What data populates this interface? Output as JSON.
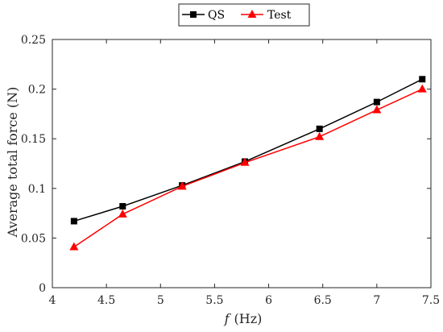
{
  "chart_data": {
    "type": "line",
    "xlabel_italic": "f",
    "xlabel_unit": "(Hz)",
    "ylabel": "Average total force (N)",
    "xlim": [
      4,
      7.5
    ],
    "ylim": [
      0,
      0.25
    ],
    "xticks": [
      4,
      4.5,
      5,
      5.5,
      6,
      6.5,
      7,
      7.5
    ],
    "yticks": [
      0,
      0.05,
      0.1,
      0.15,
      0.2,
      0.25
    ],
    "xtick_labels": [
      "4",
      "4.5",
      "5",
      "5.5",
      "6",
      "6.5",
      "7",
      "7.5"
    ],
    "ytick_labels": [
      "0",
      "0.05",
      "0.1",
      "0.15",
      "0.2",
      "0.25"
    ],
    "grid": false,
    "legend_position": "top-center",
    "series": [
      {
        "name": "QS",
        "color": "#000000",
        "marker": "square",
        "x": [
          4.2,
          4.65,
          5.2,
          5.78,
          6.47,
          7.0,
          7.42
        ],
        "y": [
          0.067,
          0.082,
          0.103,
          0.127,
          0.16,
          0.187,
          0.21
        ]
      },
      {
        "name": "Test",
        "color": "#ff0000",
        "marker": "triangle",
        "x": [
          4.2,
          4.65,
          5.2,
          5.78,
          6.47,
          7.0,
          7.42
        ],
        "y": [
          0.041,
          0.074,
          0.102,
          0.126,
          0.152,
          0.179,
          0.2
        ]
      }
    ]
  }
}
